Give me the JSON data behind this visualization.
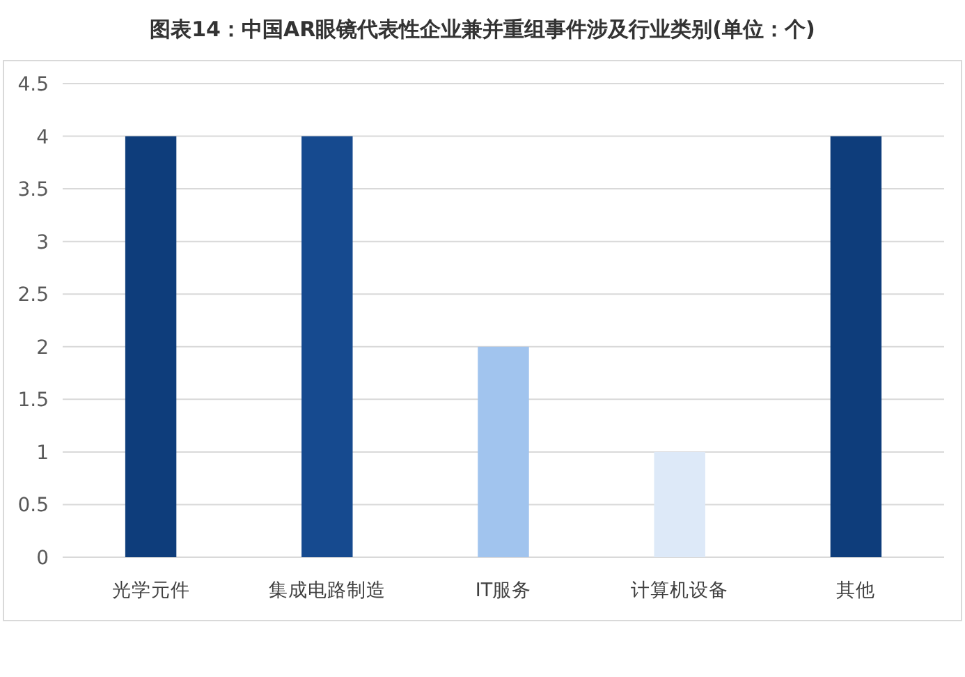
{
  "chart_data": {
    "type": "bar",
    "title": "图表14：中国AR眼镜代表性企业兼并重组事件涉及行业类别(单位：个)",
    "categories": [
      "光学元件",
      "集成电路制造",
      "IT服务",
      "计算机设备",
      "其他"
    ],
    "values": [
      4,
      4,
      2,
      1,
      4
    ],
    "colors": [
      "#0e3d7b",
      "#164a8f",
      "#a1c4ee",
      "#dde9f8",
      "#0e3d7b"
    ],
    "ylim": [
      0,
      4.5
    ],
    "yticks": [
      0,
      0.5,
      1,
      1.5,
      2,
      2.5,
      3,
      3.5,
      4,
      4.5
    ],
    "grid": "y"
  }
}
